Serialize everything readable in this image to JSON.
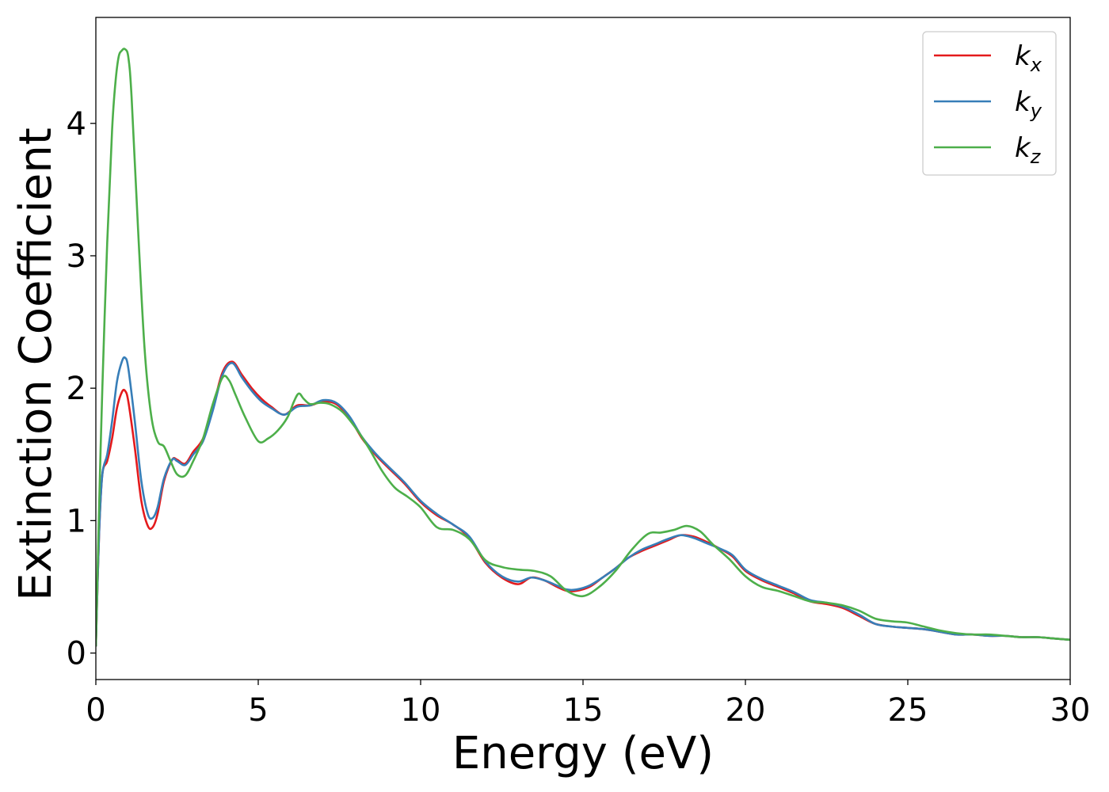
{
  "chart_data": {
    "type": "line",
    "title": "",
    "xlabel": "Energy (eV)",
    "ylabel": "Extinction Coefficient",
    "xlim": [
      0,
      30
    ],
    "ylim": [
      -0.2,
      4.8
    ],
    "xticks": [
      0,
      5,
      10,
      15,
      20,
      25,
      30
    ],
    "xtick_labels": [
      "0",
      "5",
      "10",
      "15",
      "20",
      "25",
      "30"
    ],
    "yticks": [
      0,
      1,
      2,
      3,
      4
    ],
    "ytick_labels": [
      "0",
      "1",
      "2",
      "3",
      "4"
    ],
    "grid": false,
    "legend_position": "top-right",
    "series": [
      {
        "name": "k",
        "subscript": "x",
        "color": "#e41a1c",
        "x": [
          0,
          0.1,
          0.2,
          0.35,
          0.5,
          0.65,
          0.8,
          0.9,
          1.0,
          1.2,
          1.4,
          1.6,
          1.75,
          1.9,
          2.1,
          2.35,
          2.5,
          2.75,
          3.0,
          3.3,
          3.6,
          3.9,
          4.2,
          4.5,
          4.8,
          5.1,
          5.4,
          5.8,
          6.2,
          6.6,
          7.0,
          7.4,
          7.8,
          8.2,
          8.6,
          9.0,
          9.5,
          10.0,
          10.5,
          11.0,
          11.5,
          12.0,
          12.5,
          13.0,
          13.4,
          13.8,
          14.2,
          14.5,
          14.8,
          15.2,
          15.6,
          16.0,
          16.4,
          16.8,
          17.2,
          17.6,
          18.0,
          18.4,
          18.8,
          19.2,
          19.6,
          20.0,
          20.5,
          21.0,
          21.5,
          22.0,
          22.5,
          23.0,
          23.5,
          24.0,
          24.5,
          25.0,
          25.5,
          26.0,
          26.5,
          27.0,
          27.5,
          28.0,
          28.5,
          29.0,
          29.5,
          30.0
        ],
        "y": [
          0.05,
          0.9,
          1.35,
          1.45,
          1.62,
          1.85,
          1.97,
          1.98,
          1.9,
          1.55,
          1.15,
          0.96,
          0.95,
          1.05,
          1.3,
          1.46,
          1.46,
          1.43,
          1.52,
          1.62,
          1.85,
          2.12,
          2.2,
          2.1,
          2.0,
          1.92,
          1.86,
          1.8,
          1.87,
          1.87,
          1.9,
          1.88,
          1.78,
          1.62,
          1.5,
          1.4,
          1.28,
          1.14,
          1.04,
          0.97,
          0.87,
          0.68,
          0.57,
          0.52,
          0.57,
          0.55,
          0.5,
          0.47,
          0.47,
          0.5,
          0.57,
          0.64,
          0.72,
          0.77,
          0.81,
          0.85,
          0.89,
          0.88,
          0.84,
          0.79,
          0.73,
          0.62,
          0.55,
          0.5,
          0.45,
          0.39,
          0.37,
          0.34,
          0.28,
          0.22,
          0.2,
          0.19,
          0.18,
          0.16,
          0.14,
          0.14,
          0.13,
          0.13,
          0.12,
          0.12,
          0.11,
          0.1
        ]
      },
      {
        "name": "k",
        "subscript": "y",
        "color": "#377eb8",
        "x": [
          0,
          0.1,
          0.2,
          0.35,
          0.5,
          0.65,
          0.8,
          0.9,
          1.0,
          1.2,
          1.4,
          1.6,
          1.75,
          1.9,
          2.1,
          2.35,
          2.5,
          2.75,
          3.0,
          3.3,
          3.6,
          3.9,
          4.2,
          4.5,
          4.8,
          5.1,
          5.4,
          5.8,
          6.2,
          6.6,
          7.0,
          7.4,
          7.8,
          8.2,
          8.6,
          9.0,
          9.5,
          10.0,
          10.5,
          11.0,
          11.5,
          12.0,
          12.5,
          13.0,
          13.4,
          13.8,
          14.2,
          14.5,
          14.8,
          15.2,
          15.6,
          16.0,
          16.4,
          16.8,
          17.2,
          17.6,
          18.0,
          18.4,
          18.8,
          19.2,
          19.6,
          20.0,
          20.5,
          21.0,
          21.5,
          22.0,
          22.5,
          23.0,
          23.5,
          24.0,
          24.5,
          25.0,
          25.5,
          26.0,
          26.5,
          27.0,
          27.5,
          28.0,
          28.5,
          29.0,
          29.5,
          30.0
        ],
        "y": [
          0.05,
          0.9,
          1.35,
          1.5,
          1.75,
          2.05,
          2.2,
          2.23,
          2.15,
          1.75,
          1.3,
          1.05,
          1.02,
          1.1,
          1.32,
          1.46,
          1.45,
          1.42,
          1.5,
          1.6,
          1.83,
          2.1,
          2.19,
          2.08,
          1.98,
          1.9,
          1.85,
          1.8,
          1.86,
          1.87,
          1.91,
          1.89,
          1.79,
          1.63,
          1.51,
          1.41,
          1.29,
          1.15,
          1.05,
          0.97,
          0.88,
          0.69,
          0.58,
          0.54,
          0.57,
          0.55,
          0.51,
          0.48,
          0.48,
          0.51,
          0.57,
          0.64,
          0.72,
          0.78,
          0.82,
          0.86,
          0.89,
          0.87,
          0.83,
          0.79,
          0.74,
          0.63,
          0.56,
          0.51,
          0.46,
          0.4,
          0.38,
          0.35,
          0.29,
          0.22,
          0.2,
          0.19,
          0.18,
          0.16,
          0.14,
          0.14,
          0.13,
          0.13,
          0.12,
          0.12,
          0.11,
          0.1
        ]
      },
      {
        "name": "k",
        "subscript": "z",
        "color": "#4daf4a",
        "x": [
          0,
          0.1,
          0.2,
          0.35,
          0.5,
          0.6,
          0.7,
          0.8,
          0.9,
          1.0,
          1.1,
          1.3,
          1.5,
          1.7,
          1.9,
          2.1,
          2.3,
          2.5,
          2.75,
          3.0,
          3.3,
          3.6,
          3.9,
          4.1,
          4.3,
          4.6,
          5.0,
          5.3,
          5.6,
          5.9,
          6.1,
          6.25,
          6.4,
          6.6,
          6.9,
          7.2,
          7.6,
          8.0,
          8.4,
          8.8,
          9.2,
          9.6,
          10.0,
          10.5,
          11.0,
          11.5,
          12.0,
          12.5,
          13.0,
          13.5,
          14.0,
          14.5,
          15.0,
          15.5,
          16.0,
          16.5,
          17.0,
          17.4,
          17.8,
          18.2,
          18.6,
          19.0,
          19.5,
          20.0,
          20.5,
          21.0,
          21.5,
          22.0,
          22.5,
          23.0,
          23.5,
          24.0,
          24.5,
          25.0,
          25.5,
          26.0,
          26.5,
          27.0,
          27.5,
          28.0,
          28.5,
          29.0,
          29.5,
          30.0
        ],
        "y": [
          0.05,
          1.1,
          2.0,
          3.1,
          3.95,
          4.3,
          4.5,
          4.55,
          4.56,
          4.5,
          4.2,
          3.2,
          2.3,
          1.8,
          1.6,
          1.56,
          1.45,
          1.35,
          1.34,
          1.45,
          1.62,
          1.88,
          2.08,
          2.06,
          1.95,
          1.78,
          1.6,
          1.62,
          1.68,
          1.78,
          1.9,
          1.96,
          1.92,
          1.88,
          1.89,
          1.88,
          1.82,
          1.7,
          1.55,
          1.38,
          1.25,
          1.18,
          1.1,
          0.95,
          0.93,
          0.86,
          0.7,
          0.65,
          0.63,
          0.62,
          0.58,
          0.47,
          0.43,
          0.5,
          0.62,
          0.78,
          0.9,
          0.91,
          0.93,
          0.96,
          0.92,
          0.82,
          0.71,
          0.58,
          0.5,
          0.47,
          0.43,
          0.39,
          0.38,
          0.36,
          0.32,
          0.26,
          0.24,
          0.23,
          0.2,
          0.17,
          0.15,
          0.14,
          0.14,
          0.13,
          0.12,
          0.12,
          0.11,
          0.1
        ]
      }
    ]
  }
}
